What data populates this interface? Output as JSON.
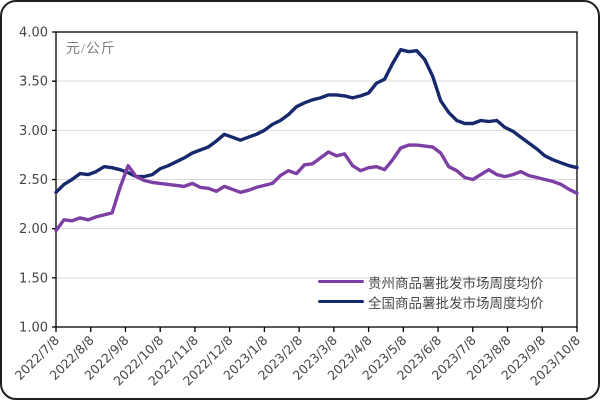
{
  "frame": {
    "background_color": "#ffffff",
    "border_color": "#1f1f1f"
  },
  "colors": {
    "guizhou_line": "#7d3fa4",
    "national_line": "#17296d",
    "gridline": "#d9d9d9",
    "axis_line": "#000000",
    "tick_text": "#454545",
    "unit_text": "#7f7f7f",
    "legend_text": "#4a4a4a"
  },
  "chart_data": {
    "type": "line",
    "title": "",
    "unit_label": "元/公斤",
    "grid": "horizontal",
    "legend_position": "inside-bottom-right",
    "y_axis": {
      "min": 1.0,
      "max": 4.0,
      "step": 0.5,
      "tick_labels": [
        "4.00",
        "3.50",
        "3.00",
        "2.50",
        "2.00",
        "1.50",
        "1.00"
      ]
    },
    "x_axis": {
      "tick_labels": [
        "2022/7/8",
        "2022/8/8",
        "2022/9/8",
        "2022/10/8",
        "2022/11/8",
        "2022/12/8",
        "2023/1/8",
        "2023/2/8",
        "2023/3/8",
        "2023/4/8",
        "2023/5/8",
        "2023/6/8",
        "2023/7/8",
        "2023/8/8",
        "2023/9/8",
        "2023/10/8"
      ]
    },
    "series": [
      {
        "name": "贵州商品薯批发市场周度均价",
        "color": "#7d3fa4",
        "values": [
          1.98,
          2.09,
          2.08,
          2.11,
          2.09,
          2.12,
          2.14,
          2.16,
          2.42,
          2.64,
          2.53,
          2.49,
          2.47,
          2.46,
          2.45,
          2.44,
          2.43,
          2.46,
          2.42,
          2.41,
          2.38,
          2.43,
          2.4,
          2.37,
          2.39,
          2.42,
          2.44,
          2.46,
          2.54,
          2.59,
          2.56,
          2.65,
          2.66,
          2.72,
          2.78,
          2.74,
          2.76,
          2.64,
          2.59,
          2.62,
          2.63,
          2.6,
          2.7,
          2.82,
          2.85,
          2.85,
          2.84,
          2.83,
          2.77,
          2.63,
          2.59,
          2.52,
          2.5,
          2.55,
          2.6,
          2.55,
          2.53,
          2.55,
          2.58,
          2.54,
          2.52,
          2.5,
          2.48,
          2.45,
          2.4,
          2.36
        ]
      },
      {
        "name": "全国商品薯批发市场周度均价",
        "color": "#17296d",
        "values": [
          2.37,
          2.45,
          2.5,
          2.56,
          2.55,
          2.58,
          2.63,
          2.62,
          2.6,
          2.57,
          2.53,
          2.53,
          2.55,
          2.61,
          2.64,
          2.68,
          2.72,
          2.77,
          2.8,
          2.83,
          2.89,
          2.96,
          2.93,
          2.9,
          2.93,
          2.96,
          3.0,
          3.06,
          3.1,
          3.16,
          3.24,
          3.28,
          3.31,
          3.33,
          3.36,
          3.36,
          3.35,
          3.33,
          3.35,
          3.38,
          3.48,
          3.52,
          3.68,
          3.82,
          3.8,
          3.81,
          3.72,
          3.55,
          3.3,
          3.18,
          3.1,
          3.07,
          3.07,
          3.1,
          3.09,
          3.1,
          3.03,
          2.99,
          2.93,
          2.87,
          2.81,
          2.74,
          2.7,
          2.67,
          2.64,
          2.62
        ]
      }
    ]
  }
}
